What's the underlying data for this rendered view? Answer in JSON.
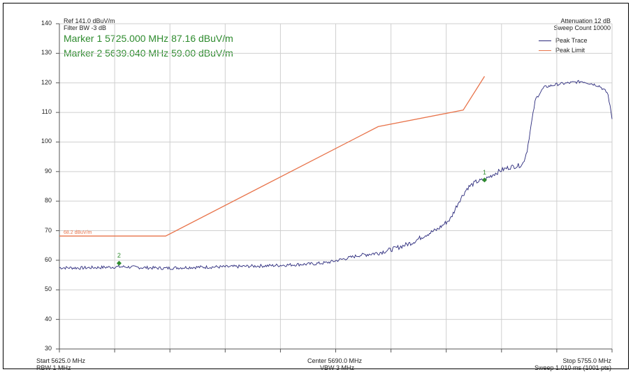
{
  "header": {
    "ref": "Ref 141.0 dBuV/m",
    "filter_bw": "Filter BW -3 dB",
    "attenuation": "Attenuation 12 dB",
    "sweep_count": "Sweep Count 10000"
  },
  "markers": {
    "m1_text": "Marker 1 5725.000 MHz 87.16 dBuV/m",
    "m2_text": "Marker 2 5639.040 MHz 59.00 dBuV/m",
    "m1_label": "1",
    "m2_label": "2"
  },
  "legend": {
    "peak_trace": "Peak Trace",
    "peak_limit": "Peak Limit"
  },
  "limit_label": "68.2 dBuV/m",
  "footer": {
    "start": "Start 5625.0 MHz",
    "rbw": "RBW 1 MHz",
    "center": "Center 5690.0 MHz",
    "vbw": "VBW 3 MHz",
    "stop": "Stop 5755.0 MHz",
    "sweep": "Sweep 1.010 ms (1001 pts)"
  },
  "colors": {
    "trace": "#2b2a7c",
    "limit": "#e8734a",
    "marker": "#2e8b2e",
    "grid": "#cfcfcf"
  },
  "chart_data": {
    "type": "line",
    "xlim": [
      5625.0,
      5755.0
    ],
    "ylim": [
      30,
      140
    ],
    "yticks": [
      "140",
      "130",
      "120",
      "110",
      "100",
      "90",
      "80",
      "70",
      "60",
      "50",
      "40",
      "30"
    ],
    "grid": true,
    "legend_position": "top-right",
    "series": [
      {
        "name": "Peak Trace",
        "x": [
          5625.0,
          5630.0,
          5635.0,
          5640.0,
          5645.0,
          5650.0,
          5655.0,
          5660.0,
          5665.0,
          5670.0,
          5675.0,
          5680.0,
          5685.0,
          5688.0,
          5692.0,
          5696.0,
          5700.0,
          5704.0,
          5708.0,
          5711.0,
          5714.0,
          5717.0,
          5719.0,
          5721.0,
          5723.0,
          5725.0,
          5727.0,
          5729.0,
          5731.0,
          5733.0,
          5734.0,
          5735.0,
          5736.0,
          5737.0,
          5739.0,
          5742.0,
          5745.0,
          5748.0,
          5750.0,
          5752.0,
          5754.0,
          5755.0
        ],
        "y": [
          57.5,
          57.4,
          57.6,
          57.8,
          57.5,
          57.3,
          57.6,
          57.7,
          57.8,
          58.0,
          58.2,
          58.5,
          58.8,
          59.2,
          60.5,
          61.8,
          62.5,
          64.0,
          66.0,
          68.5,
          70.5,
          74.0,
          80.0,
          84.5,
          86.5,
          87.2,
          89.0,
          90.5,
          91.5,
          92.0,
          92.5,
          97.0,
          106.0,
          114.5,
          118.5,
          119.5,
          120.0,
          120.5,
          119.8,
          119.0,
          116.5,
          108.0
        ]
      },
      {
        "name": "Peak Limit",
        "x": [
          5625.0,
          5650.0,
          5700.0,
          5720.0,
          5725.0
        ],
        "y": [
          68.2,
          68.2,
          105.2,
          110.8,
          122.2
        ]
      }
    ],
    "markers": [
      {
        "label": "1",
        "x": 5725.0,
        "y": 87.16
      },
      {
        "label": "2",
        "x": 5639.04,
        "y": 59.0
      }
    ]
  }
}
